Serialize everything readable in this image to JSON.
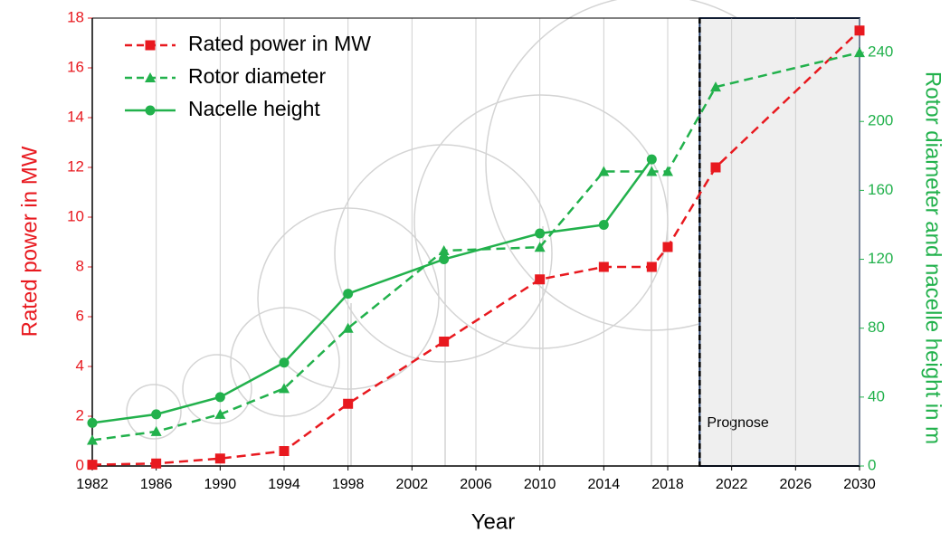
{
  "chart_data": {
    "type": "line",
    "x_label": "Year",
    "y_label": "Rated power in MW",
    "y2_label": "Rotor diameter and nacelle height in m",
    "xlim": [
      1982,
      2030
    ],
    "xticks": [
      1982,
      1986,
      1990,
      1994,
      1998,
      2002,
      2006,
      2010,
      2014,
      2018,
      2022,
      2026,
      2030
    ],
    "ylim": [
      0,
      18
    ],
    "yticks": [
      0,
      2,
      4,
      6,
      8,
      10,
      12,
      14,
      16,
      18
    ],
    "y2lim": [
      0,
      260
    ],
    "y2ticks": [
      0,
      40,
      80,
      120,
      160,
      200,
      240
    ],
    "grid": "x",
    "legend": "top-left",
    "y_label_color": "#e8191f",
    "y2_label_color": "#22b14c",
    "shaded_region": {
      "from": 2020,
      "to": 2030,
      "label": "Prognose"
    },
    "series": [
      {
        "name": "Rated power in MW",
        "color": "#e8191f",
        "marker": "square",
        "dash": "dashed",
        "x": [
          1982,
          1986,
          1990,
          1994,
          1998,
          2004,
          2010,
          2014,
          2017,
          2018,
          2021,
          2030
        ],
        "values": [
          0.05,
          0.1,
          0.3,
          0.6,
          2.5,
          5,
          7.5,
          8,
          8,
          8.8,
          12,
          17.5
        ]
      },
      {
        "name": "Rotor diameter",
        "color": "#22b14c",
        "marker": "triangle",
        "dash": "dashed",
        "axis": "y2",
        "x": [
          1982,
          1986,
          1990,
          1994,
          1998,
          2004,
          2010,
          2014,
          2017,
          2018,
          2021,
          2030
        ],
        "values": [
          15,
          20,
          30,
          45,
          80,
          125,
          127,
          171,
          171,
          171,
          220,
          240
        ]
      },
      {
        "name": "Nacelle height",
        "color": "#22b14c",
        "marker": "circle",
        "dash": "solid",
        "axis": "y2",
        "x": [
          1982,
          1986,
          1990,
          1994,
          1998,
          2004,
          2010,
          2014,
          2017
        ],
        "values": [
          25,
          30,
          40,
          60,
          100,
          120,
          135,
          140,
          178
        ]
      }
    ]
  }
}
